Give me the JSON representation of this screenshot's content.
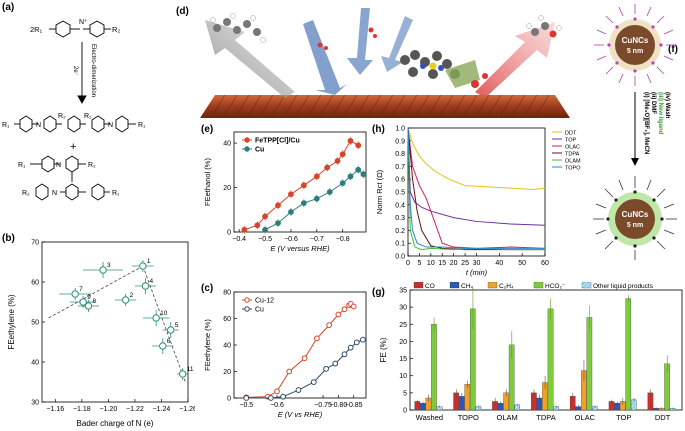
{
  "panel_labels": {
    "a": "(a)",
    "b": "(b)",
    "c": "(c)",
    "d": "(d)",
    "e": "(e)",
    "f": "(f)",
    "g": "(g)",
    "h": "(h)"
  },
  "scheme": {
    "reactant_r1": "2R₁",
    "reactant_r2": "R₂",
    "n_plus": "N⁺",
    "arrow_label": "Electro-dimerization",
    "arrow_sub": "2e⁻",
    "p1_r1": "R₁",
    "p1_r2a": "R₂",
    "p1_r2b": "R₂",
    "p1_r1b": "R₁",
    "plus": "+",
    "p2_r1a": "R₁",
    "p2_r2a": "R₂",
    "p2_r2b": "R₂",
    "p2_r1b": "R₁",
    "n": "N"
  },
  "nanocrystal": {
    "top_core": "CuNCs",
    "top_size": "5 nm",
    "bottom_core": "CuNCs",
    "bottom_size": "5 nm",
    "step1": "(i) [Me₃O][BF₄], MeCN",
    "step2": "(ii) DMF",
    "step3": "(iii) New ligand",
    "step4": "(iv) Wash"
  },
  "chart_data": [
    {
      "id": "b",
      "type": "scatter",
      "xlabel": "Bader charge of N (e)",
      "ylabel": "FEethylene (%)",
      "xlim": [
        -1.15,
        -1.26
      ],
      "ylim": [
        30,
        70
      ],
      "xticks": [
        "−1.16",
        "−1.18",
        "−1.20",
        "−1.22",
        "−1.24",
        "−1.26"
      ],
      "xtick_values": [
        -1.16,
        -1.18,
        -1.2,
        -1.22,
        -1.24,
        -1.26
      ],
      "yticks": [
        30,
        40,
        50,
        60,
        70
      ],
      "points": [
        {
          "label": "1",
          "x": -1.226,
          "y": 64,
          "xerr": 0.008,
          "yerr": 1.5
        },
        {
          "label": "2",
          "x": -1.213,
          "y": 55.5,
          "xerr": 0.008,
          "yerr": 1.5
        },
        {
          "label": "3",
          "x": -1.196,
          "y": 63,
          "xerr": 0.015,
          "yerr": 2
        },
        {
          "label": "4",
          "x": -1.228,
          "y": 59,
          "xerr": 0.008,
          "yerr": 2
        },
        {
          "label": "5",
          "x": -1.247,
          "y": 48,
          "xerr": 0.006,
          "yerr": 2
        },
        {
          "label": "6",
          "x": -1.241,
          "y": 44,
          "xerr": 0.008,
          "yerr": 2
        },
        {
          "label": "7",
          "x": -1.175,
          "y": 57,
          "xerr": 0.012,
          "yerr": 1.5
        },
        {
          "label": "8",
          "x": -1.185,
          "y": 54,
          "xerr": 0.008,
          "yerr": 1.5
        },
        {
          "label": "9",
          "x": -1.181,
          "y": 55,
          "xerr": 0.01,
          "yerr": 1.5
        },
        {
          "label": "10",
          "x": -1.236,
          "y": 51,
          "xerr": 0.01,
          "yerr": 2
        },
        {
          "label": "11",
          "x": -1.256,
          "y": 37,
          "xerr": 0.004,
          "yerr": 1.5
        }
      ]
    },
    {
      "id": "c",
      "type": "line",
      "xlabel": "E (V vs RHE)",
      "ylabel": "FEethylene (%)",
      "xlim": [
        -0.46,
        -0.89
      ],
      "ylim": [
        0,
        80
      ],
      "xticks": [
        "−0.5",
        "−0.6",
        "−0.75",
        "−0.80",
        "−0.85"
      ],
      "xtick_values": [
        -0.5,
        -0.6,
        -0.75,
        -0.8,
        -0.85
      ],
      "yticks": [
        0,
        20,
        40,
        60,
        80
      ],
      "series": [
        {
          "name": "Cu-12",
          "color": "#d9432b",
          "x": [
            -0.5,
            -0.57,
            -0.6,
            -0.64,
            -0.69,
            -0.73,
            -0.77,
            -0.8,
            -0.82,
            -0.835,
            -0.84,
            -0.85
          ],
          "y": [
            0.5,
            1,
            5,
            20,
            30,
            45,
            55,
            63,
            67,
            70,
            71,
            69
          ]
        },
        {
          "name": "Cu",
          "color": "#2e4a6b",
          "x": [
            -0.5,
            -0.58,
            -0.62,
            -0.67,
            -0.72,
            -0.76,
            -0.79,
            -0.82,
            -0.84,
            -0.86,
            -0.88
          ],
          "y": [
            0,
            0,
            1,
            6,
            12,
            22,
            26,
            33,
            38,
            42,
            44
          ]
        }
      ]
    },
    {
      "id": "e",
      "type": "line",
      "xlabel": "E (V versus RHE)",
      "ylabel": "FEethanol (%)",
      "xlim": [
        -0.38,
        -0.89
      ],
      "ylim": [
        0,
        45
      ],
      "xticks": [
        "−0.4",
        "−0.5",
        "−0.6",
        "−0.7",
        "−0.8"
      ],
      "xtick_values": [
        -0.4,
        -0.5,
        -0.6,
        -0.7,
        -0.8
      ],
      "yticks": [
        0,
        20,
        40
      ],
      "series": [
        {
          "name": "FeTPP[Cl]/Cu",
          "color": "#d9432b",
          "x": [
            -0.42,
            -0.47,
            -0.5,
            -0.55,
            -0.6,
            -0.65,
            -0.7,
            -0.74,
            -0.78,
            -0.8,
            -0.83,
            -0.86
          ],
          "y": [
            1,
            3,
            7,
            12,
            17,
            21,
            25,
            29,
            32,
            35,
            41,
            39
          ]
        },
        {
          "name": "Cu",
          "color": "#2e7d7a",
          "x": [
            -0.5,
            -0.55,
            -0.6,
            -0.65,
            -0.7,
            -0.75,
            -0.8,
            -0.83,
            -0.86,
            -0.88
          ],
          "y": [
            1,
            4,
            9,
            13,
            15,
            18,
            22,
            25,
            28,
            26
          ]
        }
      ]
    },
    {
      "id": "h",
      "type": "line",
      "xlabel": "t (min)",
      "ylabel": "Norm Rct (Ω)",
      "xlim": [
        0,
        60
      ],
      "ylim": [
        0,
        1.0
      ],
      "xticks": [
        "0",
        "5",
        "10",
        "15",
        "20",
        "25",
        "30",
        "40",
        "50",
        "60"
      ],
      "xtick_values": [
        0,
        5,
        10,
        15,
        20,
        25,
        30,
        40,
        50,
        60
      ],
      "yticks": [
        0,
        0.1,
        0.2,
        0.3,
        0.4,
        0.5,
        0.6,
        0.7,
        0.8,
        0.9,
        1.0
      ],
      "series": [
        {
          "name": "DDT",
          "color": "#e3c21a",
          "x": [
            0,
            2,
            5,
            8,
            12,
            18,
            25,
            35,
            45,
            55,
            60
          ],
          "y": [
            1.0,
            0.88,
            0.78,
            0.72,
            0.66,
            0.6,
            0.55,
            0.54,
            0.53,
            0.52,
            0.53
          ]
        },
        {
          "name": "TOP",
          "color": "#6b2fa8",
          "x": [
            0,
            1,
            3,
            6,
            10,
            20,
            30,
            45,
            60
          ],
          "y": [
            1.0,
            0.5,
            0.42,
            0.38,
            0.35,
            0.3,
            0.27,
            0.25,
            0.24
          ]
        },
        {
          "name": "OLAC",
          "color": "#d11f5c",
          "x": [
            0,
            2,
            5,
            8,
            10,
            12,
            15,
            20,
            30,
            45,
            60
          ],
          "y": [
            1.0,
            0.7,
            0.55,
            0.45,
            0.35,
            0.25,
            0.1,
            0.07,
            0.06,
            0.07,
            0.06
          ]
        },
        {
          "name": "TDPA",
          "color": "#6b1010",
          "x": [
            0,
            2,
            4,
            6,
            10,
            15,
            25,
            40,
            60
          ],
          "y": [
            1.0,
            0.6,
            0.35,
            0.2,
            0.08,
            0.06,
            0.05,
            0.05,
            0.05
          ]
        },
        {
          "name": "OLAM",
          "color": "#3dbf3d",
          "x": [
            0,
            1,
            3,
            6,
            10,
            20,
            30,
            45,
            60
          ],
          "y": [
            1.0,
            0.2,
            0.07,
            0.05,
            0.06,
            0.05,
            0.06,
            0.05,
            0.05
          ]
        },
        {
          "name": "TOPO",
          "color": "#2d87c8",
          "x": [
            0,
            1,
            2,
            4,
            8,
            15,
            25,
            40,
            60
          ],
          "y": [
            1.0,
            0.4,
            0.2,
            0.1,
            0.07,
            0.07,
            0.06,
            0.06,
            0.06
          ]
        }
      ]
    },
    {
      "id": "g",
      "type": "bar",
      "xlabel": "",
      "ylabel": "FE (%)",
      "ylim": [
        0,
        35
      ],
      "yticks": [
        0,
        5,
        10,
        15,
        20,
        25,
        30,
        35
      ],
      "categories": [
        "Washed",
        "TOPO",
        "OLAM",
        "TDPA",
        "OLAC",
        "TOP",
        "DDT"
      ],
      "series": [
        {
          "name": "CO",
          "color": "#c8302e",
          "values": [
            2.5,
            5,
            2.5,
            5,
            4,
            2.5,
            5
          ],
          "errors": [
            0.5,
            1,
            1,
            1,
            1,
            0.5,
            1
          ]
        },
        {
          "name": "CH₄",
          "color": "#2b57b8",
          "values": [
            2,
            4,
            2,
            3.5,
            1,
            2,
            0.5
          ],
          "errors": [
            0.5,
            1,
            0.5,
            1,
            0.5,
            0.5,
            0.3
          ]
        },
        {
          "name": "C₂H₄",
          "color": "#f0a128",
          "values": [
            3.5,
            7.5,
            5,
            8,
            11.5,
            2.5,
            0.5
          ],
          "errors": [
            1,
            1,
            1,
            2,
            3,
            1,
            0.3
          ]
        },
        {
          "name": "HCO₂⁻",
          "color": "#7ecb3e",
          "values": [
            25,
            29.5,
            19,
            29.5,
            27,
            32.5,
            13.5
          ],
          "errors": [
            2,
            6,
            4,
            3,
            3.5,
            1,
            2.5
          ]
        },
        {
          "name": "Other liquid products",
          "color": "#6ec1e4",
          "hatch": true,
          "values": [
            1,
            1,
            1.5,
            1,
            1,
            3,
            0.5
          ],
          "errors": [
            0.3,
            0.3,
            0.3,
            0.3,
            0.3,
            0.5,
            0.2
          ]
        }
      ]
    }
  ]
}
